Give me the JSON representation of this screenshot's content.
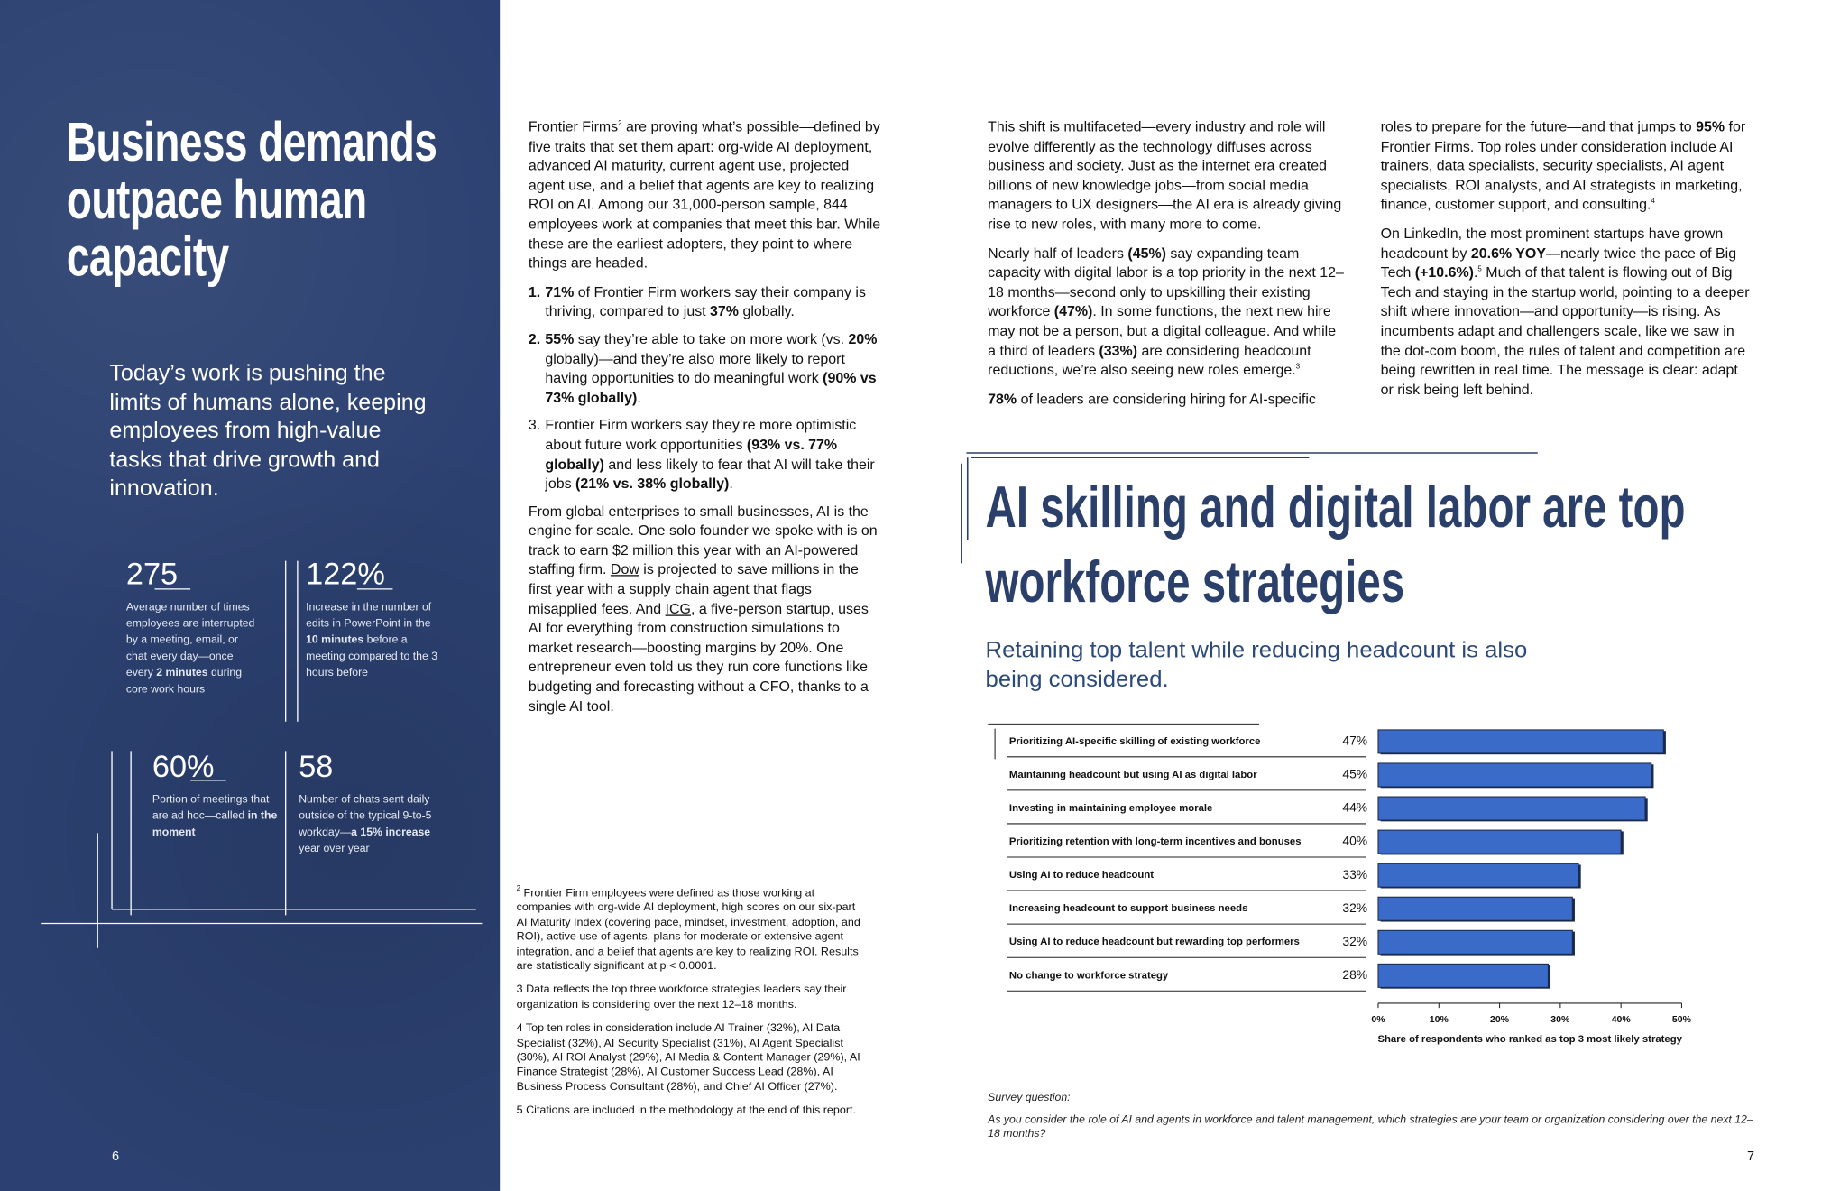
{
  "left": {
    "title": "Business demands outpace human capacity",
    "subtitle": "Today’s work is pushing the limits of humans alone, keeping employees from high-value tasks that drive growth and innovation.",
    "stats": [
      {
        "value": "275",
        "desc": [
          "Average number of times employees are interrupted by a meeting, email, or chat every day—once every ",
          {
            "b": "2 minutes"
          },
          " during core work hours"
        ]
      },
      {
        "value": "122%",
        "desc": [
          "Increase in the number of edits in PowerPoint in the ",
          {
            "b": "10 minutes"
          },
          " before a meeting compared to the 3 hours before"
        ]
      },
      {
        "value": "60%",
        "desc": [
          "Portion of meetings that are ad hoc—called ",
          {
            "b": "in the moment"
          }
        ]
      },
      {
        "value": "58",
        "desc": [
          "Number of chats sent daily outside of the typical 9-to-5 workday—",
          {
            "b": "a 15% increase"
          },
          " year over year"
        ]
      }
    ],
    "page_number": "6"
  },
  "middle": {
    "intro": [
      "Frontier Firms",
      {
        "sup": "2"
      },
      " are proving what’s possible—defined by five traits that set them apart: org-wide AI deployment, advanced AI maturity, current agent use, projected agent use, and a belief that agents are key to realizing ROI on AI. Among our 31,000-person sample, 844 employees work at companies that meet this bar. While these are the earliest adopters, they point to where things are headed."
    ],
    "list": [
      {
        "marker": [
          {
            "b": "1."
          }
        ],
        "text": [
          {
            "b": "71%"
          },
          " of Frontier Firm workers say their company is thriving, compared to just ",
          {
            "b": "37%"
          },
          " globally."
        ]
      },
      {
        "marker": [
          {
            "b": "2."
          }
        ],
        "text": [
          {
            "b": "55%"
          },
          " say they’re able to take on more work (vs. ",
          {
            "b": "20%"
          },
          " globally)—and they’re also more likely to report having opportunities to do meaningful work ",
          {
            "b": "(90% vs 73% globally)"
          },
          "."
        ]
      },
      {
        "marker": [
          "3."
        ],
        "text": [
          "Frontier Firm workers say they’re more optimistic about future work opportunities ",
          {
            "b": "(93% vs. 77% globally)"
          },
          " and less likely to fear that AI will take their jobs ",
          {
            "b": "(21% vs. 38% globally)"
          },
          "."
        ]
      }
    ],
    "closing": [
      "From global enterprises to small businesses, AI is the engine for scale. One solo founder we spoke with is on track to earn $2 million this year with an AI-powered staffing firm. ",
      {
        "u": "Dow"
      },
      " is projected to save millions in the first year with a supply chain agent that flags misapplied fees. And ",
      {
        "u": "ICG"
      },
      ", a five-person startup, uses AI for everything from construction simulations to market research—boosting margins by 20%. One entrepreneur even told us they run core functions like budgeting and forecasting without a CFO, thanks to a single AI tool."
    ],
    "footnotes": [
      [
        {
          "sup": "2"
        },
        " Frontier Firm employees were defined as those working at companies with org-wide AI deployment, high scores on our six-part AI Maturity Index (covering pace, mindset, investment, adoption, and ROI), active use of agents, plans for moderate or extensive agent integration, and a belief that agents are key to realizing ROI. Results are statistically significant at p < 0.0001."
      ],
      [
        "3 Data reflects the top three workforce strategies leaders say their organization is considering over the next 12–18 months."
      ],
      [
        "4 Top ten roles in consideration include AI Trainer (32%), AI Data Specialist (32%), AI Security Specialist (31%), AI Agent Specialist (30%), AI ROI Analyst (29%), AI Media & Content Manager (29%), AI Finance Strategist (28%), AI Customer Success Lead (28%), AI Business Process Consultant (28%), and Chief AI Officer (27%)."
      ],
      [
        "5 Citations are included in the methodology at the end of this report."
      ]
    ]
  },
  "right": {
    "col1": [
      [
        "This shift is multifaceted—every industry and role will evolve differently as the technology diffuses across business and society. Just as the internet era created billions of new knowledge jobs—from social media managers to UX designers—the AI era is already giving rise to new roles, with many more to come."
      ],
      [
        "Nearly half of leaders ",
        {
          "b": "(45%)"
        },
        " say expanding team capacity with digital labor is a top priority in the next 12–18 months—second only to upskilling their existing workforce ",
        {
          "b": "(47%)"
        },
        ". In some functions, the next new hire may not be a person, but a digital colleague. And while a third of leaders ",
        {
          "b": "(33%)"
        },
        " are considering headcount reductions, we’re also seeing new roles emerge.",
        {
          "sup": "3"
        }
      ],
      [
        {
          "b": "78%"
        },
        " of leaders are considering hiring for AI-specific"
      ]
    ],
    "col2": [
      [
        "roles to prepare for the future—and that jumps to ",
        {
          "b": "95%"
        },
        " for Frontier Firms. Top roles under consideration include AI trainers, data specialists, security specialists, AI agent specialists, ROI analysts, and AI strategists in marketing, finance, customer support, and consulting.",
        {
          "sup": "4"
        }
      ],
      [
        "On LinkedIn, the most prominent startups have grown headcount by ",
        {
          "b": "20.6% YOY"
        },
        "—nearly twice the pace of Big Tech ",
        {
          "b": "(+10.6%)"
        },
        ".",
        {
          "sup": "5"
        },
        " Much of that talent is flowing out of Big Tech and staying in the startup world, pointing to a deeper shift where innovation—and opportunity—is rising. As incumbents adapt and challengers scale, like we saw in the dot-com boom, the rules of talent and competition are being rewritten in real time. The message is clear: adapt or risk being left behind."
      ]
    ],
    "heading": "AI skilling and digital labor are top workforce strategies",
    "subheading": "Retaining top talent while reducing headcount is also being considered.",
    "survey_label": "Survey question:",
    "survey_text": "As you consider the role of AI and agents in workforce and talent management, which strategies are your team or organization considering over the next 12–18 months?",
    "page_number": "7"
  },
  "chart_data": {
    "type": "bar",
    "orientation": "horizontal",
    "categories": [
      "Prioritizing AI-specific skilling of existing workforce",
      "Maintaining headcount but using AI as digital labor",
      "Investing in maintaining employee morale",
      "Prioritizing retention with long-term incentives and bonuses",
      "Using AI to reduce headcount",
      "Increasing headcount to support business needs",
      "Using AI to reduce headcount but rewarding top performers",
      "No change to workforce strategy"
    ],
    "values": [
      47,
      45,
      44,
      40,
      33,
      32,
      32,
      28
    ],
    "value_labels": [
      "47%",
      "45%",
      "44%",
      "40%",
      "33%",
      "32%",
      "32%",
      "28%"
    ],
    "color": "#3a6bc9",
    "xlim": [
      0,
      50
    ],
    "xticks": [
      {
        "value": 0,
        "label": "0%"
      },
      {
        "value": 10,
        "label": "10%"
      },
      {
        "value": 20,
        "label": "20%"
      },
      {
        "value": 30,
        "label": "30%"
      },
      {
        "value": 40,
        "label": "40%"
      },
      {
        "value": 50,
        "label": "50%"
      }
    ],
    "x_label": "Share of respondents who ranked as top 3 most likely strategy"
  }
}
